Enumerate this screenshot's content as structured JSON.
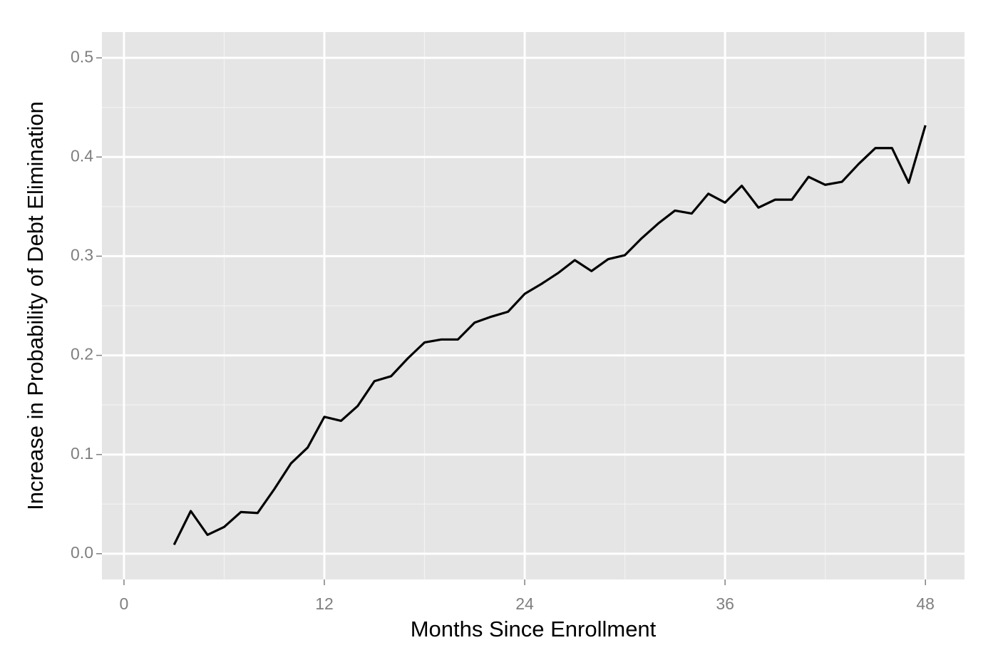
{
  "chart_data": {
    "type": "line",
    "x_label": "Months Since Enrollment",
    "y_label": "Increase in Probability of Debt Elimination",
    "x": [
      3,
      4,
      5,
      6,
      7,
      8,
      9,
      10,
      11,
      12,
      13,
      14,
      15,
      16,
      17,
      18,
      19,
      20,
      21,
      22,
      23,
      24,
      25,
      26,
      27,
      28,
      29,
      30,
      31,
      32,
      33,
      34,
      35,
      36,
      37,
      38,
      39,
      40,
      41,
      42,
      43,
      44,
      45,
      46,
      47,
      48
    ],
    "values": [
      0.009,
      0.043,
      0.019,
      0.027,
      0.042,
      0.041,
      0.065,
      0.091,
      0.107,
      0.138,
      0.134,
      0.149,
      0.174,
      0.179,
      0.197,
      0.213,
      0.216,
      0.216,
      0.233,
      0.239,
      0.244,
      0.262,
      0.272,
      0.283,
      0.296,
      0.285,
      0.297,
      0.301,
      0.318,
      0.333,
      0.346,
      0.343,
      0.363,
      0.354,
      0.371,
      0.349,
      0.357,
      0.357,
      0.38,
      0.372,
      0.375,
      0.393,
      0.409,
      0.409,
      0.374,
      0.432
    ],
    "color": "#000000",
    "xlim": [
      -1.32,
      50.34
    ],
    "ylim": [
      -0.026,
      0.526
    ],
    "xticks": [
      0,
      12,
      24,
      36,
      48
    ],
    "yticks": [
      {
        "value": 0,
        "label": "0.0"
      },
      0.1,
      0.2,
      0.3,
      0.4,
      0.5
    ],
    "grid": true,
    "minor_grid": true,
    "panel_color": "#e5e5e5"
  }
}
